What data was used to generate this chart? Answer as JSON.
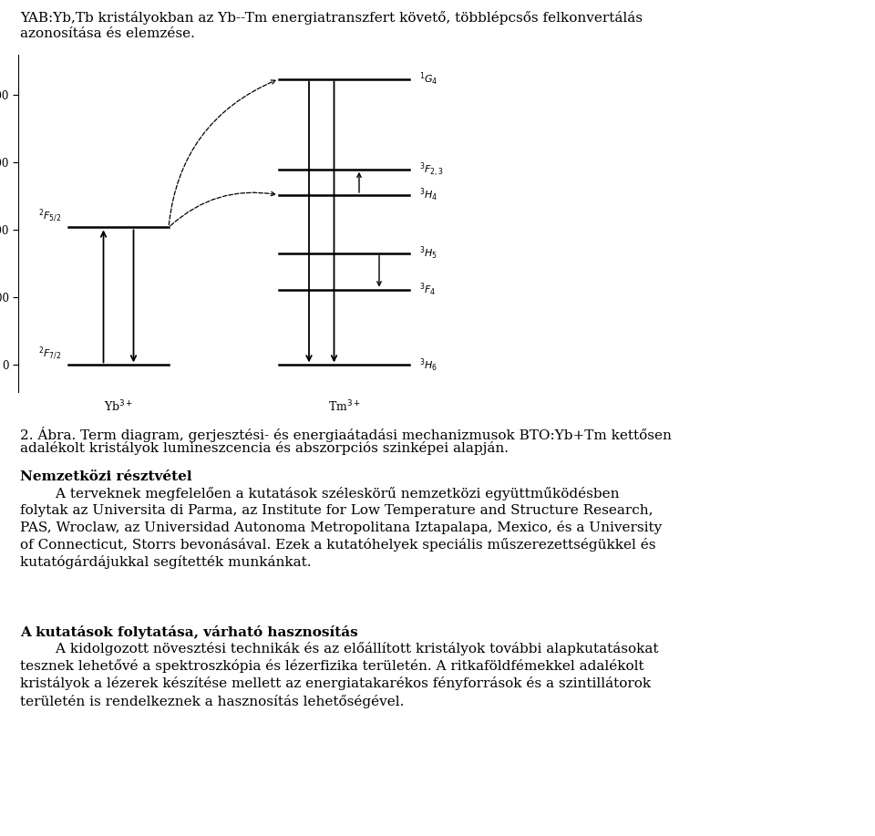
{
  "title_text1": "YAB:Yb,Tb kristályokban az Yb--Tm energiatranszfert követő, többlépcsős felkonvertálás",
  "title_text2": "azonosítása és elemzése.",
  "caption_line1": "2. Ábra. Term diagram, gerjesztési- és energiaátadási mechanizmusok BTO:Yb+Tm kettősen",
  "caption_line2": "adalékolt kristályok lumineszcencia és abszorpciós szinképei alapján.",
  "sec1_title": "Nemzetközi résztvétel",
  "sec1_para": "        A terveknek megfelelően a kutatások széleskörű nemzetközi együttműködésben\nfolytak az Universita di Parma, az Institute for Low Temperature and Structure Research,\nPAS, Wroclaw, az Universidad Autonoma Metropolitana Iztapalapa, Mexico, és a University\nof Connecticut, Storrs bevonásával. Ezek a kutatóhelyek speciális műszerezettségükkel és\nkutatógárdájukkal segítették munkánkat.",
  "sec2_title": "A kutatások folytatása, várható hasznosítás",
  "sec2_para": "        A kidolgozott növesztési technikák és az előállított kristályok további alapkutatásokat\ntesznek lehetővé a spektroszkópia és lézerfizika területén. A ritkaföldfémekkel adalékolt\nkristályok a lézerek készítése mellett az energiatakarékos fényforrások és a szintillátorok\nterületén is rendelkeznek a hasznosítás lehetőségével.",
  "bg_color": "#ffffff",
  "text_color": "#000000"
}
